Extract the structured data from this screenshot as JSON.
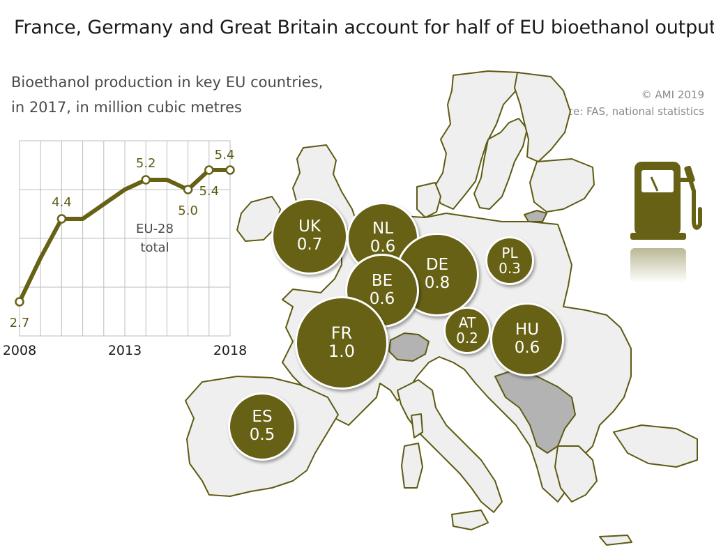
{
  "headline": "France, Germany and Great Britain account for half of EU bioethanol output",
  "subtitle_line1": "Bioethanol production in key EU countries,",
  "subtitle_line2": "in 2017, in million cubic metres",
  "copyright": "© AMI 2019",
  "source": "Source: FAS, national statistics",
  "colors": {
    "bubble": "#666114",
    "land": "#efefef",
    "border": "#5e5a12",
    "highlight": "#b3b3b3",
    "line": "#666114"
  },
  "icon": "fuel-pump-icon",
  "chart_data": {
    "type": "line",
    "x": [
      2008,
      2009,
      2010,
      2011,
      2012,
      2013,
      2014,
      2015,
      2016,
      2017,
      2018
    ],
    "values": [
      2.7,
      3.6,
      4.4,
      4.4,
      4.7,
      5.0,
      5.2,
      5.2,
      5.0,
      5.4,
      5.4
    ],
    "point_labels": [
      {
        "year": 2008,
        "label": "2.7"
      },
      {
        "year": 2010,
        "label": "4.4"
      },
      {
        "year": 2014,
        "label": "5.2"
      },
      {
        "year": 2016,
        "label": "5.0"
      },
      {
        "year": 2017,
        "label": "5.4"
      },
      {
        "year": 2018,
        "label": "5.4"
      }
    ],
    "x_tick_labels": [
      "2008",
      "2013",
      "2018"
    ],
    "series_label": "EU-28 total",
    "series_label_line1": "EU-28",
    "series_label_line2": "total",
    "xlim": [
      2008,
      2018
    ],
    "ylim": [
      2.0,
      6.0
    ],
    "grid": true
  },
  "countries": [
    {
      "code": "UK",
      "value": "0.7"
    },
    {
      "code": "NL",
      "value": "0.6"
    },
    {
      "code": "DE",
      "value": "0.8"
    },
    {
      "code": "BE",
      "value": "0.6"
    },
    {
      "code": "FR",
      "value": "1.0"
    },
    {
      "code": "PL",
      "value": "0.3"
    },
    {
      "code": "AT",
      "value": "0.2"
    },
    {
      "code": "HU",
      "value": "0.6"
    },
    {
      "code": "ES",
      "value": "0.5"
    }
  ]
}
